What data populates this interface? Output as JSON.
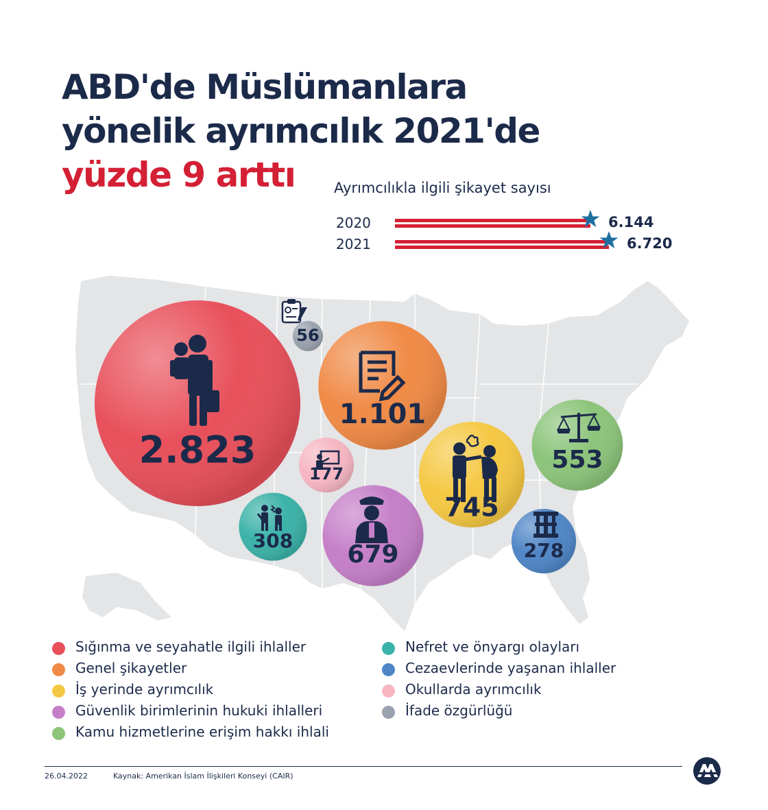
{
  "title": {
    "line1": "ABD'de Müslümanlara",
    "line2": "yönelik ayrımcılık 2021'de",
    "line3": "yüzde 9 arttı"
  },
  "bar_section": {
    "title": "Ayrımcılıkla ilgili şikayet sayısı",
    "color": "#d42034",
    "star_color": "#1e6f9f"
  },
  "chart_data": [
    {
      "type": "bar",
      "orientation": "horizontal",
      "title": "Ayrımcılıkla ilgili şikayet sayısı",
      "categories": [
        "2020",
        "2021"
      ],
      "values": [
        6144,
        6720
      ],
      "value_labels": [
        "6.144",
        "6.720"
      ]
    },
    {
      "type": "bubble",
      "categories": [
        "Sığınma ve seyahatle ilgili ihlaller",
        "Genel şikayetler",
        "İş yerinde ayrımcılık",
        "Güvenlik birimlerinin hukuki ihlalleri",
        "Kamu hizmetlerine erişim hakkı ihlali",
        "Nefret ve önyargı olayları",
        "Cezaevlerinde yaşanan ihlaller",
        "Okullarda ayrımcılık",
        "İfade özgürlüğü"
      ],
      "values": [
        2823,
        1101,
        745,
        679,
        553,
        308,
        278,
        177,
        56
      ],
      "value_labels": [
        "2.823",
        "1.101",
        "745",
        "679",
        "553",
        "308",
        "278",
        "177",
        "56"
      ],
      "colors": [
        "#e8505b",
        "#f08a46",
        "#f5c843",
        "#c57fc8",
        "#8cc47a",
        "#3bb2a8",
        "#4f86c6",
        "#f6b6c2",
        "#9aa2ae"
      ],
      "icons": [
        "traveler-with-child-icon",
        "document-edit-icon",
        "workplace-harassment-icon",
        "police-officer-icon",
        "scales-of-justice-icon",
        "hate-incident-icon",
        "prison-icon",
        "teacher-board-icon",
        "clipboard-icon"
      ]
    }
  ],
  "legend": {
    "left": [
      {
        "label": "Sığınma ve seyahatle ilgili ihlaller",
        "color": "#e8505b"
      },
      {
        "label": "Genel şikayetler",
        "color": "#f08a46"
      },
      {
        "label": "İş yerinde ayrımcılık",
        "color": "#f5c843"
      },
      {
        "label": "Güvenlik birimlerinin hukuki ihlalleri",
        "color": "#c57fc8"
      },
      {
        "label": "Kamu hizmetlerine erişim hakkı ihlali",
        "color": "#8cc47a"
      }
    ],
    "right": [
      {
        "label": "Nefret ve önyargı olayları",
        "color": "#3bb2a8"
      },
      {
        "label": "Cezaevlerinde yaşanan ihlaller",
        "color": "#4f86c6"
      },
      {
        "label": "Okullarda ayrımcılık",
        "color": "#f6b6c2"
      },
      {
        "label": "İfade özgürlüğü",
        "color": "#9aa2ae"
      }
    ]
  },
  "footer": {
    "date": "26.04.2022",
    "source": "Kaynak: Amerikan İslam İlişkileri Konseyi (CAIR)",
    "logo_icon": "aa-logo-icon"
  }
}
